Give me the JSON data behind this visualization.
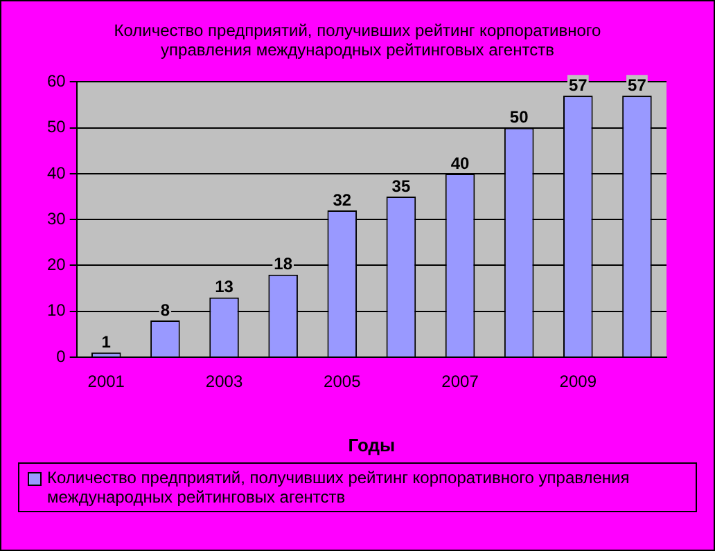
{
  "chart_data": {
    "type": "bar",
    "title": "Количество предприятий, получивших рейтинг корпоративного управления международных рейтинговых агентств",
    "xlabel": "Годы",
    "categories": [
      "2001",
      null,
      "2003",
      null,
      "2005",
      null,
      "2007",
      null,
      "2009",
      null
    ],
    "series": [
      {
        "name": "Количество предприятий, получивших рейтинг корпоративного управления международных рейтинговых агентств",
        "color": "#9999ff",
        "values": [
          1,
          8,
          13,
          18,
          32,
          35,
          40,
          50,
          57,
          57
        ]
      }
    ],
    "ylim": [
      0,
      60
    ],
    "yticks": [
      0,
      10,
      20,
      30,
      40,
      50,
      60
    ],
    "grid": "y",
    "legend": "bottom",
    "data_labels": true
  }
}
